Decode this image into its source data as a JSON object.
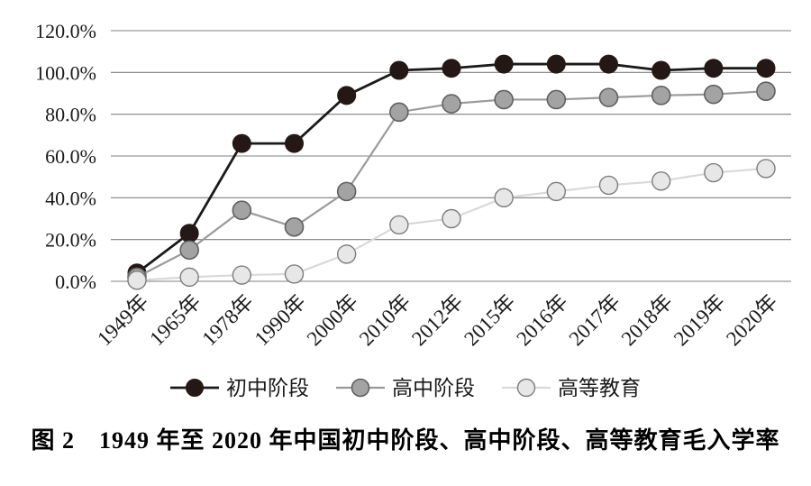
{
  "figure": {
    "caption": "图 2　1949 年至 2020 年中国初中阶段、高中阶段、高等教育毛入学率"
  },
  "chart_data": {
    "type": "line",
    "title": "",
    "xlabel": "",
    "ylabel": "",
    "categories": [
      "1949年",
      "1965年",
      "1978年",
      "1990年",
      "2000年",
      "2010年",
      "2012年",
      "2015年",
      "2016年",
      "2017年",
      "2018年",
      "2019年",
      "2020年"
    ],
    "series": [
      {
        "id": "junior-secondary",
        "name": "初中阶段",
        "values": [
          4,
          23,
          66,
          66,
          89,
          101,
          102,
          104,
          104,
          104,
          101,
          102,
          102
        ]
      },
      {
        "id": "senior-secondary",
        "name": "高中阶段",
        "values": [
          2,
          15,
          34,
          26,
          43,
          81,
          85,
          87,
          87,
          88,
          89,
          89.5,
          91
        ]
      },
      {
        "id": "higher-education",
        "name": "高等教育",
        "values": [
          0.5,
          2,
          3,
          3.5,
          13,
          27,
          30,
          40,
          43,
          46,
          48,
          52,
          54
        ]
      }
    ],
    "ylim": [
      0,
      120
    ],
    "ytick_step": 20,
    "ytick_labels": [
      "0.0%",
      "20.0%",
      "40.0%",
      "60.0%",
      "80.0%",
      "100.0%",
      "120.0%"
    ],
    "grid": "horizontal-only",
    "legend_position": "bottom"
  },
  "colors": {
    "background": "#ffffff",
    "grid": "#7f7f7f",
    "text": "#1a1a1a",
    "series": [
      {
        "line": "#1a1a1a",
        "line_width": 2.8,
        "marker_fill": "#231815",
        "marker_stroke": "#231815",
        "marker_stroke_width": 1
      },
      {
        "line": "#9a9a9a",
        "line_width": 2.2,
        "marker_fill": "#a3a3a3",
        "marker_stroke": "#606060",
        "marker_stroke_width": 1.6
      },
      {
        "line": "#d9d9d9",
        "line_width": 2.2,
        "marker_fill": "#e7e7e7",
        "marker_stroke": "#7d7d7d",
        "marker_stroke_width": 1.4
      }
    ]
  }
}
